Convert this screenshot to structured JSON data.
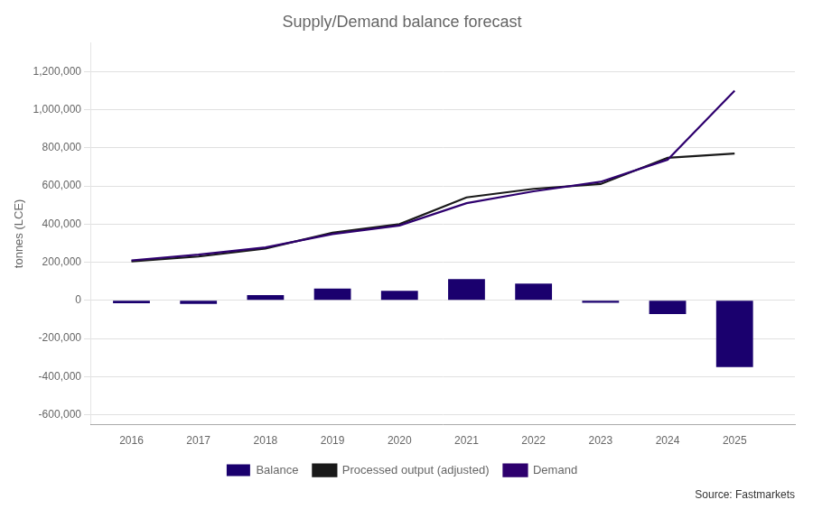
{
  "chart_data": {
    "type": "bar",
    "title": "Supply/Demand balance forecast",
    "y_label": "tonnes (LCE)",
    "annotations": [
      "Source: Fastmarkets"
    ],
    "x": [
      2016,
      2017,
      2018,
      2019,
      2020,
      2021,
      2022,
      2023,
      2024,
      2025
    ],
    "series": [
      {
        "name": "Balance",
        "type": "bar",
        "color": "#1a006e",
        "values": [
          -15000,
          -18000,
          28000,
          62000,
          50000,
          112000,
          88000,
          -12000,
          -72000,
          -350000
        ]
      },
      {
        "name": "Processed output (adjusted)",
        "type": "line",
        "color": "#1a1a1a",
        "values": [
          205000,
          230000,
          272000,
          355000,
          400000,
          540000,
          585000,
          610000,
          748000,
          770000
        ]
      },
      {
        "name": "Demand",
        "type": "line",
        "color": "#2e006e",
        "values": [
          210000,
          240000,
          278000,
          348000,
          393000,
          510000,
          572000,
          622000,
          738000,
          1100000
        ]
      }
    ],
    "xlim": [
      2015.4,
      2025.9
    ],
    "xticks": [
      2016,
      2017,
      2018,
      2019,
      2020,
      2021,
      2022,
      2023,
      2024,
      2025
    ],
    "ylim": [
      -650000,
      1350000
    ],
    "yticks": [
      {
        "value": -600000,
        "label": "-600,000"
      },
      {
        "value": -400000,
        "label": "-400,000"
      },
      {
        "value": -200000,
        "label": "-200,000"
      },
      0,
      {
        "value": 200000,
        "label": "200,000"
      },
      {
        "value": 400000,
        "label": "400,000"
      },
      {
        "value": 600000,
        "label": "600,000"
      },
      {
        "value": 800000,
        "label": "800,000"
      },
      {
        "value": 1000000,
        "label": "1,000,000"
      },
      {
        "value": 1200000,
        "label": "1,200,000"
      }
    ],
    "grid": "y",
    "legend": "bottom"
  }
}
